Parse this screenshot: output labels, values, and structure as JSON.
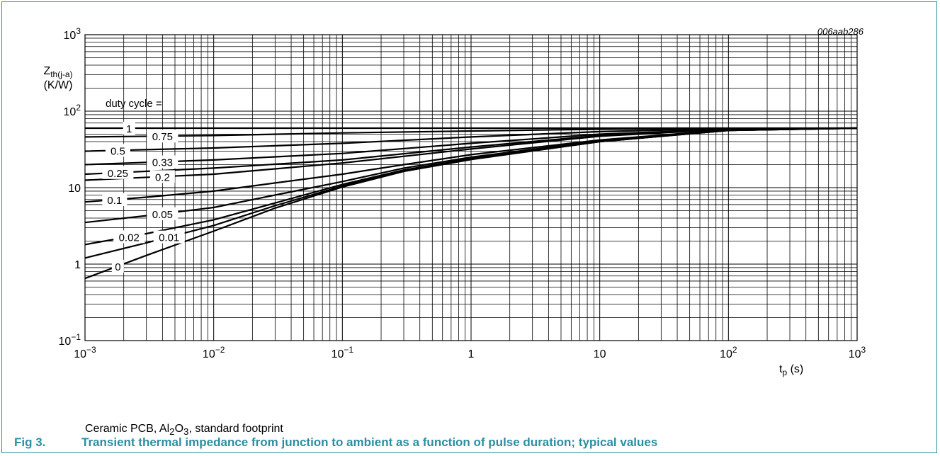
{
  "figure": {
    "code": "006aab286",
    "note": "Ceramic PCB, Al2O3, standard footprint",
    "note_parts": {
      "pre": "Ceramic PCB, Al",
      "sub": "2",
      "mid": "O",
      "sub2": "3",
      "post": ", standard footprint"
    },
    "number": "Fig 3.",
    "caption": "Transient thermal impedance from junction to ambient as a function of pulse duration; typical values"
  },
  "chart_data": {
    "type": "line",
    "x_scale": "log",
    "y_scale": "log",
    "xlim": [
      0.001,
      1000
    ],
    "ylim": [
      0.1,
      1000
    ],
    "x_ticks": [
      {
        "v": 0.001,
        "base": "10",
        "exp": "−3"
      },
      {
        "v": 0.01,
        "base": "10",
        "exp": "−2"
      },
      {
        "v": 0.1,
        "base": "10",
        "exp": "−1"
      },
      {
        "v": 1,
        "base": "1",
        "exp": ""
      },
      {
        "v": 10,
        "base": "10",
        "exp": ""
      },
      {
        "v": 100,
        "base": "10",
        "exp": "2"
      },
      {
        "v": 1000,
        "base": "10",
        "exp": "3"
      }
    ],
    "y_ticks": [
      {
        "v": 0.1,
        "base": "10",
        "exp": "−1"
      },
      {
        "v": 1,
        "base": "1",
        "exp": ""
      },
      {
        "v": 10,
        "base": "10",
        "exp": ""
      },
      {
        "v": 100,
        "base": "10",
        "exp": "2"
      },
      {
        "v": 1000,
        "base": "10",
        "exp": "3"
      }
    ],
    "ylabel": {
      "main": "Z",
      "sub": "th(j-a)",
      "unit": "(K/W)"
    },
    "xlabel": {
      "main": "t",
      "sub": "p",
      "unit": " (s)"
    },
    "legend_title": "duty cycle =",
    "grid": true,
    "colors": {
      "line": "#000000",
      "grid": "#000000",
      "caption": "#2a8fa0",
      "frame": "#2a8fa0"
    },
    "series": [
      {
        "name": "1",
        "x": [
          0.001,
          1000
        ],
        "y": [
          60,
          60
        ]
      },
      {
        "name": "0.75",
        "x": [
          0.001,
          0.01,
          0.1,
          1,
          10,
          100,
          1000
        ],
        "y": [
          46,
          48,
          52,
          55,
          58,
          59.5,
          60
        ]
      },
      {
        "name": "0.5",
        "x": [
          0.001,
          0.01,
          0.1,
          1,
          10,
          100,
          1000
        ],
        "y": [
          30,
          33,
          38,
          46,
          54,
          59,
          60
        ]
      },
      {
        "name": "0.33",
        "x": [
          0.001,
          0.01,
          0.1,
          1,
          10,
          100,
          1000
        ],
        "y": [
          20,
          23,
          28,
          38,
          50,
          58,
          60
        ]
      },
      {
        "name": "0.25",
        "x": [
          0.001,
          0.01,
          0.1,
          1,
          10,
          100,
          1000
        ],
        "y": [
          15,
          18,
          23,
          34,
          48,
          58,
          60
        ]
      },
      {
        "name": "0.2",
        "x": [
          0.001,
          0.01,
          0.1,
          1,
          10,
          100,
          1000
        ],
        "y": [
          12.5,
          15,
          21,
          32,
          47,
          58,
          60
        ]
      },
      {
        "name": "0.1",
        "x": [
          0.001,
          0.003,
          0.01,
          0.03,
          0.1,
          0.3,
          1,
          10,
          100,
          1000
        ],
        "y": [
          6.5,
          7.5,
          9,
          11.5,
          15,
          20,
          27,
          42,
          57,
          60
        ]
      },
      {
        "name": "0.05",
        "x": [
          0.001,
          0.003,
          0.01,
          0.03,
          0.1,
          0.3,
          1,
          10,
          100,
          1000
        ],
        "y": [
          3.5,
          4.3,
          5.5,
          8,
          12,
          18,
          25,
          41,
          56,
          60
        ]
      },
      {
        "name": "0.02",
        "x": [
          0.001,
          0.003,
          0.01,
          0.03,
          0.1,
          0.3,
          1,
          10,
          100,
          1000
        ],
        "y": [
          1.8,
          2.5,
          3.8,
          6.3,
          11,
          17,
          24,
          40,
          56,
          60
        ]
      },
      {
        "name": "0.01",
        "x": [
          0.001,
          0.003,
          0.01,
          0.03,
          0.1,
          0.3,
          1,
          10,
          100,
          1000
        ],
        "y": [
          1.2,
          1.9,
          3.2,
          5.8,
          10.5,
          16.5,
          23.5,
          40,
          56,
          60
        ]
      },
      {
        "name": "0",
        "x": [
          0.001,
          0.003,
          0.01,
          0.03,
          0.1,
          0.3,
          1,
          10,
          100,
          1000
        ],
        "y": [
          0.65,
          1.3,
          2.7,
          5.4,
          10.2,
          16.3,
          23.3,
          40,
          56,
          60
        ]
      }
    ]
  }
}
